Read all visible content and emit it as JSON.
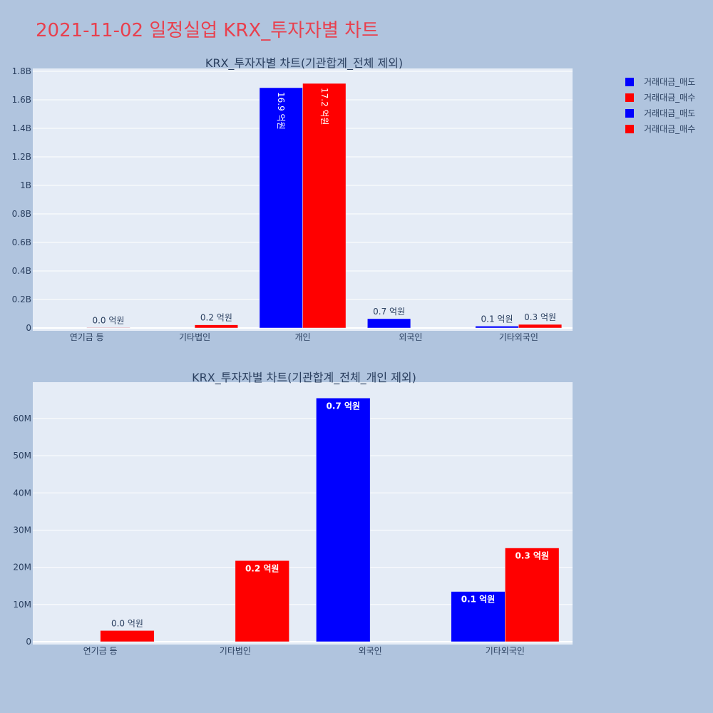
{
  "title": "2021-11-02 일정실업 KRX_투자자별 차트",
  "legend": [
    {
      "label": "거래대금_매도",
      "color": "#0000ff"
    },
    {
      "label": "거래대금_매수",
      "color": "#ff0000"
    },
    {
      "label": "거래대금_매도",
      "color": "#0000ff"
    },
    {
      "label": "거래대금_매수",
      "color": "#ff0000"
    }
  ],
  "chart_data": [
    {
      "type": "bar",
      "title": "KRX_투자자별 차트(기관합계_전체 제외)",
      "categories": [
        "연기금 등",
        "기타법인",
        "개인",
        "외국인",
        "기타외국인"
      ],
      "ylim": [
        0,
        1800000000
      ],
      "yticks": [
        0,
        200000000,
        400000000,
        600000000,
        800000000,
        1000000000,
        1200000000,
        1400000000,
        1600000000,
        1800000000
      ],
      "ytick_labels": [
        "0",
        "0.2B",
        "0.4B",
        "0.6B",
        "0.8B",
        "1B",
        "1.2B",
        "1.4B",
        "1.6B",
        "1.8B"
      ],
      "grid": true,
      "series": [
        {
          "name": "거래대금_매도",
          "color": "#0000ff",
          "values": [
            0,
            0,
            1685000000,
            65000000,
            13000000
          ],
          "labels": [
            "",
            "",
            "16.9 억원",
            "0.7 억원",
            "0.1 억원"
          ]
        },
        {
          "name": "거래대금_매수",
          "color": "#ff0000",
          "values": [
            3000000,
            22000000,
            1715000000,
            0,
            25000000
          ],
          "labels": [
            "0.0 억원",
            "0.2 억원",
            "17.2 억원",
            "",
            "0.3 억원"
          ]
        }
      ]
    },
    {
      "type": "bar",
      "title": "KRX_투자자별 차트(기관합계_전체_개인 제외)",
      "categories": [
        "연기금 등",
        "기타법인",
        "외국인",
        "기타외국인"
      ],
      "ylim": [
        0,
        69000000
      ],
      "yticks": [
        0,
        10000000,
        20000000,
        30000000,
        40000000,
        50000000,
        60000000
      ],
      "ytick_labels": [
        "0",
        "10M",
        "20M",
        "30M",
        "40M",
        "50M",
        "60M"
      ],
      "grid": true,
      "series": [
        {
          "name": "거래대금_매도",
          "color": "#0000ff",
          "values": [
            0,
            0,
            65500000,
            13500000
          ],
          "labels": [
            "",
            "",
            "0.7 억원",
            "0.1 억원"
          ]
        },
        {
          "name": "거래대금_매수",
          "color": "#ff0000",
          "values": [
            3000000,
            21800000,
            0,
            25200000
          ],
          "labels": [
            "0.0 억원",
            "0.2 억원",
            "",
            "0.3 억원"
          ]
        }
      ]
    }
  ]
}
